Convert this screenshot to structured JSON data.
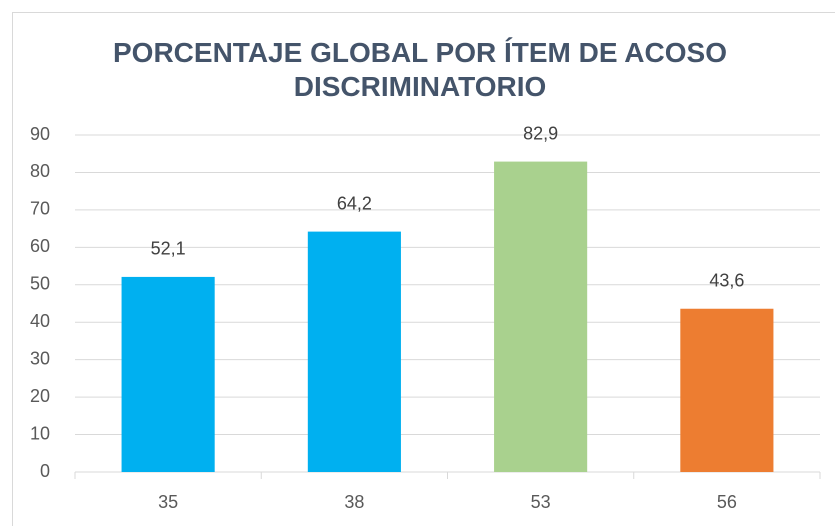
{
  "chart_data": {
    "type": "bar",
    "title": "PORCENTAJE GLOBAL POR ÍTEM DE ACOSO DISCRIMINATORIO",
    "categories": [
      "35",
      "38",
      "53",
      "56"
    ],
    "values": [
      52.1,
      64.2,
      82.9,
      43.6
    ],
    "value_labels": [
      "52,1",
      "64,2",
      "82,9",
      "43,6"
    ],
    "colors": [
      "#00b0f0",
      "#00b0f0",
      "#a9d18e",
      "#ed7d31"
    ],
    "ylim": [
      0,
      90
    ],
    "yticks": [
      0,
      10,
      20,
      30,
      40,
      50,
      60,
      70,
      80,
      90
    ],
    "grid": true
  }
}
